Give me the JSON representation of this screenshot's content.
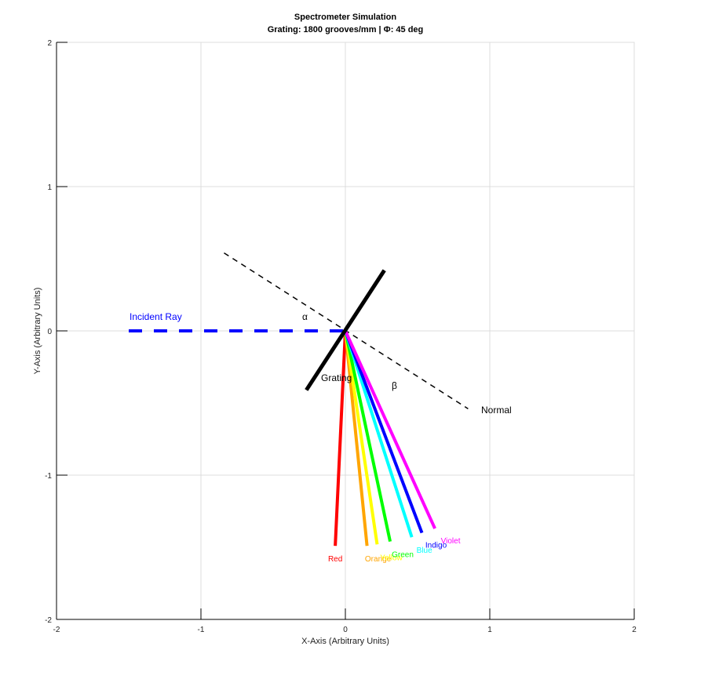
{
  "chart_data": {
    "type": "line",
    "title": "Spectrometer Simulation",
    "subtitle": "Grating: 1800 grooves/mm | Φ: 45 deg",
    "xlabel": "X-Axis (Arbitrary Units)",
    "ylabel": "Y-Axis (Arbitrary Units)",
    "xlim": [
      -2,
      2
    ],
    "ylim": [
      -2,
      2
    ],
    "xticks": [
      "-2",
      "-1",
      "0",
      "1",
      "2"
    ],
    "yticks": [
      "2",
      "1",
      "0",
      "-1",
      "-2"
    ],
    "grid": true,
    "incident_ray": {
      "label": "Incident Ray",
      "color": "#0000ff",
      "style": "dashed",
      "x": [
        -1.5,
        0
      ],
      "y": [
        0,
        0
      ]
    },
    "grating": {
      "label": "Grating",
      "color": "#000000",
      "x": [
        -0.27,
        0.27
      ],
      "y": [
        -0.41,
        0.42
      ]
    },
    "normal": {
      "label": "Normal",
      "color": "#000000",
      "style": "dashed",
      "x": [
        -0.84,
        0.85
      ],
      "y": [
        0.54,
        -0.54
      ]
    },
    "angles": {
      "alpha": "α",
      "beta": "β"
    },
    "series": [
      {
        "name": "Red",
        "color": "#ff0000",
        "x": [
          0,
          -0.07
        ],
        "y": [
          0,
          -1.49
        ]
      },
      {
        "name": "Orange",
        "color": "#ffa500",
        "x": [
          0,
          0.15
        ],
        "y": [
          0,
          -1.49
        ]
      },
      {
        "name": "Yellow",
        "color": "#ffff00",
        "x": [
          0,
          0.22
        ],
        "y": [
          0,
          -1.48
        ]
      },
      {
        "name": "Green",
        "color": "#00ff00",
        "x": [
          0,
          0.31
        ],
        "y": [
          0,
          -1.46
        ]
      },
      {
        "name": "Blue",
        "color": "#00ffff",
        "x": [
          0,
          0.46
        ],
        "y": [
          0,
          -1.43
        ]
      },
      {
        "name": "Indigo",
        "color": "#0000ff",
        "x": [
          0,
          0.53
        ],
        "y": [
          0,
          -1.4
        ]
      },
      {
        "name": "Violet",
        "color": "#ff00ff",
        "x": [
          0,
          0.62
        ],
        "y": [
          0,
          -1.37
        ]
      }
    ]
  }
}
